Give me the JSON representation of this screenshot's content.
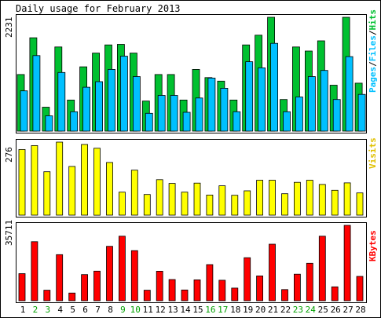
{
  "chart_data": {
    "type": "bar",
    "title": "Daily usage for February 2013",
    "categories": [
      "1",
      "2",
      "3",
      "4",
      "5",
      "6",
      "7",
      "8",
      "9",
      "10",
      "11",
      "12",
      "13",
      "14",
      "15",
      "16",
      "17",
      "18",
      "19",
      "20",
      "21",
      "22",
      "23",
      "24",
      "25",
      "26",
      "27",
      "28"
    ],
    "weekend_days": [
      "2",
      "3",
      "9",
      "10",
      "16",
      "17",
      "23",
      "24"
    ],
    "panels": [
      {
        "name": "hits-files-pages",
        "ymax_label": "2231",
        "ymax": 2231,
        "legend": [
          "Pages",
          "/",
          "Files",
          "/",
          "Hits"
        ],
        "series": [
          {
            "name": "Hits",
            "color": "#00C030",
            "values": [
              1110,
              1830,
              470,
              1650,
              610,
              1260,
              1530,
              1690,
              1700,
              1530,
              590,
              1110,
              1110,
              610,
              1210,
              1050,
              980,
              610,
              1690,
              1880,
              2231,
              620,
              1650,
              1570,
              1770,
              900,
              2231,
              940
            ]
          },
          {
            "name": "Files",
            "color": "#00C0FF",
            "values": [
              790,
              1480,
              300,
              1150,
              380,
              860,
              970,
              1210,
              1470,
              1070,
              350,
              700,
              700,
              370,
              650,
              1040,
              840,
              380,
              1360,
              1240,
              1720,
              380,
              670,
              1070,
              1190,
              620,
              1460,
              720
            ]
          },
          {
            "name": "Pages",
            "color": "#00C0FF",
            "values": [
              0,
              0,
              0,
              0,
              0,
              0,
              0,
              0,
              0,
              0,
              0,
              0,
              0,
              0,
              0,
              0,
              0,
              0,
              0,
              0,
              0,
              0,
              0,
              0,
              0,
              0,
              0,
              0
            ]
          }
        ]
      },
      {
        "name": "visits",
        "ymax_label": "276",
        "ymax": 276,
        "legend": [
          "Visits"
        ],
        "series": [
          {
            "name": "Visits",
            "color": "#FFFF00",
            "values": [
              248,
              263,
              164,
              276,
              184,
              267,
              253,
              199,
              87,
              170,
              78,
              134,
              120,
              87,
              121,
              76,
              111,
              75,
              92,
              132,
              132,
              81,
              124,
              132,
              116,
              94,
              122,
              84
            ]
          }
        ]
      },
      {
        "name": "kbytes",
        "ymax_label": "35711",
        "ymax": 35711,
        "legend": [
          "KBytes"
        ],
        "series": [
          {
            "name": "KBytes",
            "color": "#FF0000",
            "values": [
              12850,
              27970,
              5000,
              21820,
              3630,
              12390,
              14010,
              25780,
              30560,
              23750,
              4970,
              14000,
              10060,
              5090,
              9900,
              17100,
              9710,
              5980,
              20390,
              11770,
              26770,
              5270,
              12580,
              17750,
              30560,
              6580,
              35711,
              11530
            ]
          }
        ]
      }
    ]
  },
  "colors": {
    "frame": "#000000",
    "weekend_label": "#00A000",
    "weekday_label": "#000000",
    "legend_slash": "#000000"
  }
}
